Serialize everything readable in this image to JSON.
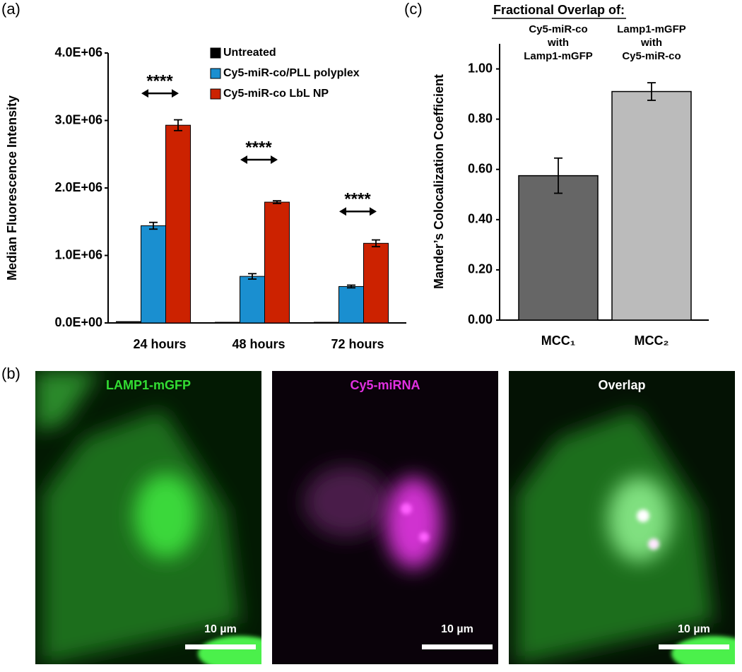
{
  "panel_labels": [
    "(a)",
    "(b)",
    "(c)"
  ],
  "chart_data": [
    {
      "type": "bar",
      "y_label": "Median Fluorescence Intensity",
      "categories": [
        "24 hours",
        "48 hours",
        "72 hours"
      ],
      "series": [
        {
          "name": "Untreated",
          "color": "#000000",
          "values": [
            20000,
            10000,
            10000
          ],
          "errors": [
            5000,
            3000,
            3000
          ]
        },
        {
          "name": "Cy5-miR-co/PLL polyplex",
          "color": "#1a8fd0",
          "values": [
            1440000,
            690000,
            540000
          ],
          "errors": [
            50000,
            40000,
            20000
          ]
        },
        {
          "name": "Cy5-miR-co LbL NP",
          "color": "#cc2200",
          "values": [
            2930000,
            1790000,
            1180000
          ],
          "errors": [
            80000,
            20000,
            50000
          ]
        }
      ],
      "annotations": [
        "****",
        "****",
        "****"
      ],
      "ylim": [
        0,
        4000000
      ],
      "yticks": [
        {
          "value": 0,
          "label": "0.0E+00"
        },
        {
          "value": 1000000,
          "label": "1.0E+06"
        },
        {
          "value": 2000000,
          "label": "2.0E+06"
        },
        {
          "value": 3000000,
          "label": "3.0E+06"
        },
        {
          "value": 4000000,
          "label": "4.0E+06"
        }
      ],
      "legend": "upper right",
      "grid": false
    },
    {
      "type": "bar",
      "title": "Fractional Overlap of:",
      "y_label": "Mander’s Colocalization Coefficient",
      "column_labels": [
        [
          "Cy5-miR-co",
          "with",
          "Lamp1-mGFP"
        ],
        [
          "Lamp1-mGFP",
          "with",
          "Cy5-miR-co"
        ]
      ],
      "categories": [
        "MCC₁",
        "MCC₂"
      ],
      "values": [
        0.575,
        0.91
      ],
      "errors": [
        0.07,
        0.035
      ],
      "colors": [
        "#666666",
        "#bbbbbb"
      ],
      "ylim": [
        0,
        1.1
      ],
      "yticks": [
        {
          "value": 0,
          "label": "0.00"
        },
        {
          "value": 0.2,
          "label": "0.20"
        },
        {
          "value": 0.4,
          "label": "0.40"
        },
        {
          "value": 0.6,
          "label": "0.60"
        },
        {
          "value": 0.8,
          "label": "0.80"
        },
        {
          "value": 1,
          "label": "1.00"
        }
      ],
      "grid": false
    }
  ],
  "images": [
    {
      "label": "LAMP1-mGFP",
      "scale_bar": "10 µm"
    },
    {
      "label": "Cy5-miRNA",
      "scale_bar": "10 µm"
    },
    {
      "label": "Overlap",
      "scale_bar": "10 µm"
    }
  ]
}
